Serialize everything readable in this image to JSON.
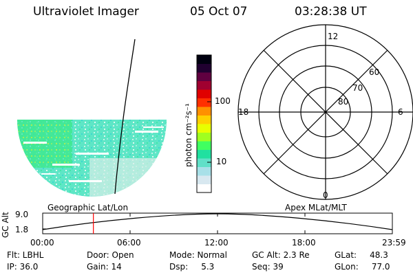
{
  "header": {
    "title": "Ultraviolet Imager",
    "date": "05 Oct 07",
    "time": "03:28:38 UT"
  },
  "colorbar": {
    "label": "photon cm⁻²s⁻¹",
    "ticks": [
      "100",
      "10"
    ],
    "colors": [
      "#ffffff",
      "#d8e8f0",
      "#a8e0e8",
      "#60e0c8",
      "#20e0a0",
      "#40ff60",
      "#a0ff20",
      "#e8ff00",
      "#ffd000",
      "#ff9000",
      "#ff3000",
      "#e00000",
      "#a00030",
      "#600040",
      "#200030",
      "#000010"
    ]
  },
  "polar_plot": {
    "mlt_labels": {
      "top": "12",
      "right": "6",
      "bottom": "0",
      "left": "18"
    },
    "lat_labels": [
      "60",
      "70",
      "80"
    ]
  },
  "map_labels": {
    "left": "Geographic Lat/Lon",
    "right": "Apex MLat/MLT"
  },
  "timeline": {
    "ylabel": "GC Alt",
    "y_ticks": [
      "9.0",
      "1.8"
    ],
    "x_ticks": [
      "00:00",
      "06:00",
      "12:00",
      "18:00",
      "23:59"
    ],
    "marker_fraction": 0.145,
    "marker_color": "#ff0000"
  },
  "footer": {
    "flt": "Flt: LBHL",
    "ip": "IP: 36.0",
    "door": "Door: Open",
    "gain": "Gain: 14",
    "mode": "Mode: Normal",
    "dsp": "Dsp:     5.3",
    "gcalt": "GC Alt: 2.3 Re",
    "seq": "Seq: 39",
    "glat": "GLat:     48.3",
    "glon": "GLon:     77.0"
  }
}
